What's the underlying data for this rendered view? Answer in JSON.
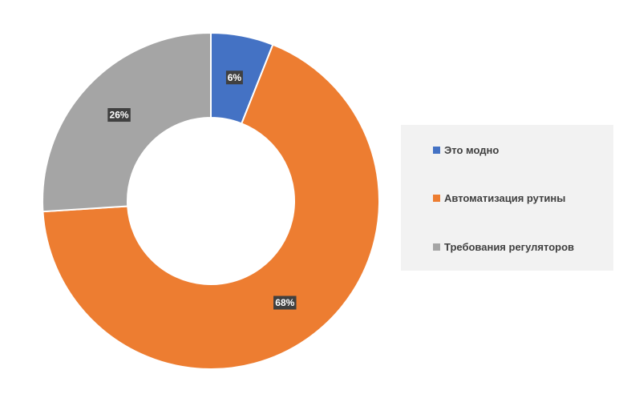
{
  "chart_data": {
    "type": "pie",
    "variant": "donut",
    "categories": [
      "Это модно",
      "Автоматизация рутины",
      "Требования регуляторов"
    ],
    "values": [
      6,
      68,
      26
    ],
    "value_labels": [
      "6%",
      "68%",
      "26%"
    ],
    "colors": [
      "#4472c4",
      "#ed7d31",
      "#a5a5a5"
    ],
    "legend_position": "right",
    "title": ""
  }
}
